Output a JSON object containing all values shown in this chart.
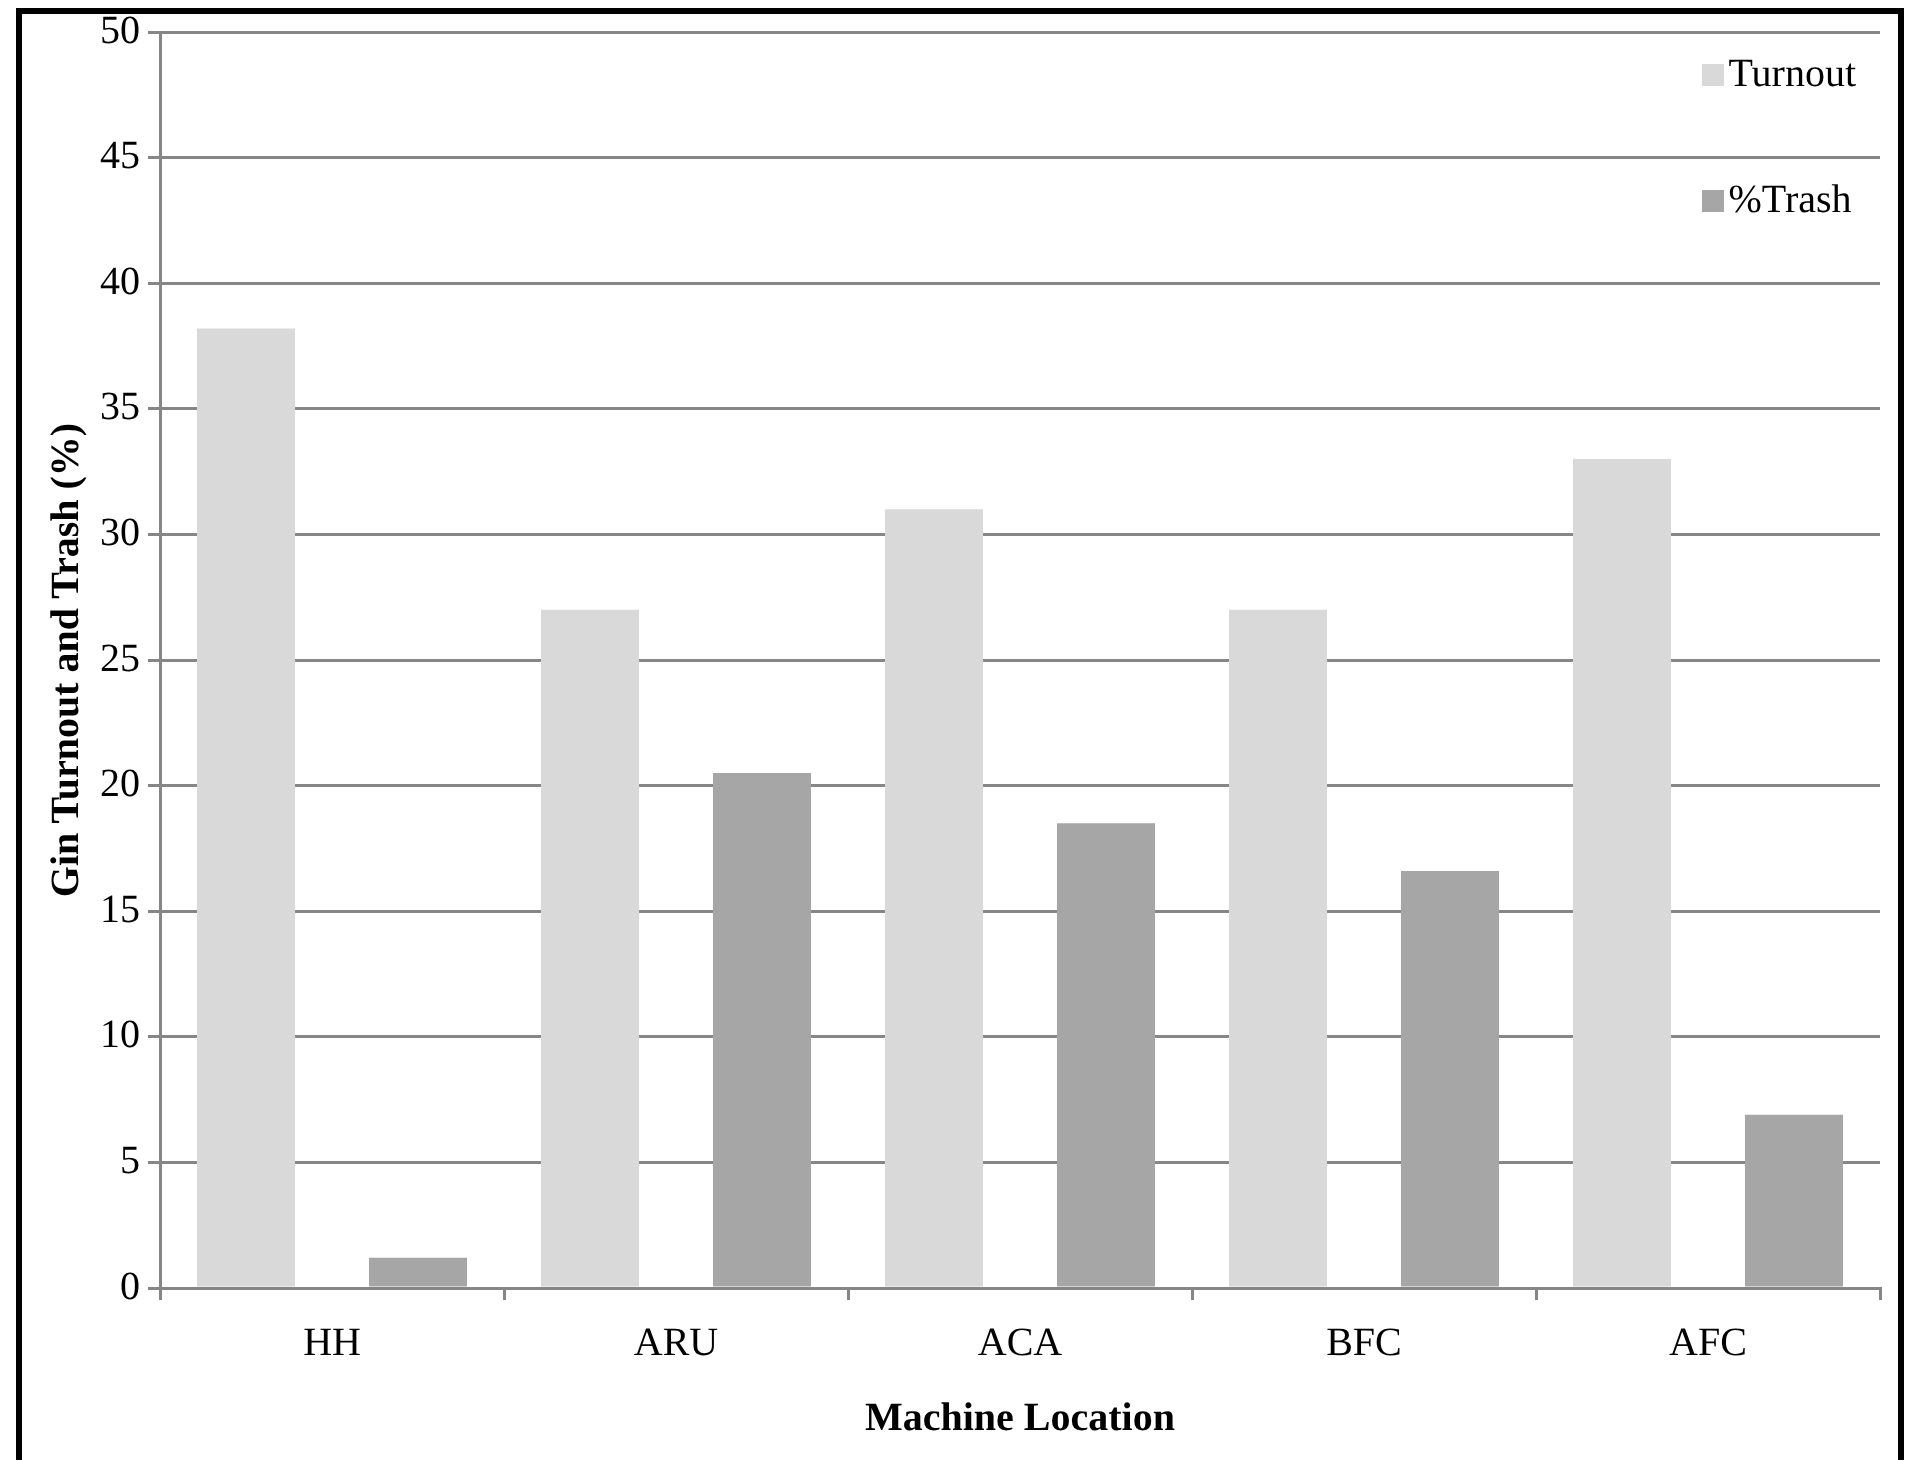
{
  "chart_data": {
    "type": "bar",
    "xlabel": "Machine Location",
    "ylabel": "Gin Turnout and Trash (%)",
    "categories": [
      "HH",
      "ARU",
      "ACA",
      "BFC",
      "AFC"
    ],
    "series": [
      {
        "name": "Turnout",
        "color": "#d9d9d9",
        "values": [
          38.2,
          27,
          31,
          27,
          33
        ]
      },
      {
        "name": "%Trash",
        "color": "#a6a6a6",
        "values": [
          1.2,
          20.5,
          18.5,
          16.6,
          6.9
        ]
      }
    ],
    "ylim": [
      0,
      50
    ],
    "yticks": [
      0,
      5,
      10,
      15,
      20,
      25,
      30,
      35,
      40,
      45,
      50
    ],
    "grid": "y",
    "legend": "top right"
  }
}
